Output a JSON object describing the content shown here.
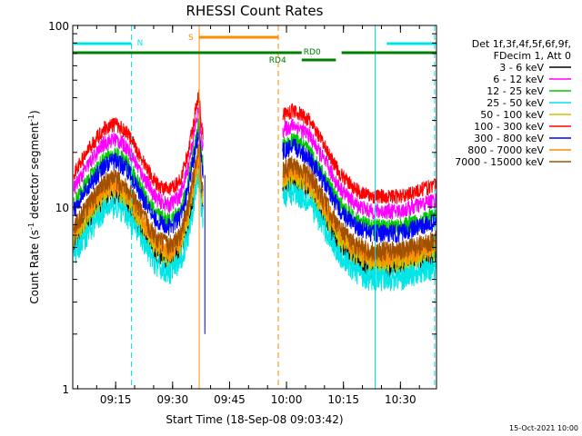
{
  "chart_data": {
    "type": "line",
    "title": "RHESSI Count Rates",
    "xlabel": "Start Time (18-Sep-08 09:03:42)",
    "ylabel_main": "Count Rate (s",
    "ylabel_sup1": "-1",
    "ylabel_mid": " detector segment",
    "ylabel_sup2": "-1",
    "ylabel_end": ")",
    "x_start": "09:03:42",
    "x_end": "10:39:30",
    "y_scale": "log",
    "ylim": [
      1,
      100
    ],
    "x_ticks": [
      "09:15",
      "09:30",
      "09:45",
      "10:00",
      "10:15",
      "10:30"
    ],
    "y_ticks": [
      "1",
      "10",
      "100"
    ],
    "legend_header": [
      "Det 1f,3f,4f,5f,6f,9f,",
      "FDecim 1, Att 0"
    ],
    "legend_position": "right",
    "series": [
      {
        "name": "3 - 6 keV",
        "color": "#000000",
        "scale": 0.58
      },
      {
        "name": "6 - 12 keV",
        "color": "#ff00ff",
        "scale": 1.16
      },
      {
        "name": "12 - 25 keV",
        "color": "#00c800",
        "scale": 0.95
      },
      {
        "name": "25 - 50 keV",
        "color": "#00e6e6",
        "scale": 0.5
      },
      {
        "name": "50 - 100 keV",
        "color": "#c8c800",
        "scale": 0.62
      },
      {
        "name": "100 - 300 keV",
        "color": "#ff0000",
        "scale": 1.4
      },
      {
        "name": "300 - 800 keV",
        "color": "#0000ff",
        "scale": 0.88
      },
      {
        "name": "800 - 7000 keV",
        "color": "#ff8c00",
        "scale": 0.66
      },
      {
        "name": "7000 - 15000 keV",
        "color": "#a05000",
        "scale": 0.7
      }
    ],
    "base_profile": [
      {
        "t": "09:04:00",
        "v": 11.0
      },
      {
        "t": "09:08:00",
        "v": 15.0
      },
      {
        "t": "09:12:00",
        "v": 19.5
      },
      {
        "t": "09:15:00",
        "v": 20.5
      },
      {
        "t": "09:18:00",
        "v": 18.5
      },
      {
        "t": "09:22:00",
        "v": 13.0
      },
      {
        "t": "09:26:00",
        "v": 9.5
      },
      {
        "t": "09:29:00",
        "v": 8.8
      },
      {
        "t": "09:32:00",
        "v": 10.0
      },
      {
        "t": "09:34:00",
        "v": 14.0
      },
      {
        "t": "09:36:00",
        "v": 24.0
      },
      {
        "t": "09:37:00",
        "v": 31.0
      },
      {
        "t": "09:37:30",
        "v": 21.0
      },
      {
        "t": "09:38:00",
        "v": 18.0
      }
    ],
    "base_profile_2": [
      {
        "t": "09:59:00",
        "v": 23.0
      },
      {
        "t": "10:02:00",
        "v": 24.5
      },
      {
        "t": "10:06:00",
        "v": 21.5
      },
      {
        "t": "10:10:00",
        "v": 15.5
      },
      {
        "t": "10:14:00",
        "v": 11.0
      },
      {
        "t": "10:18:00",
        "v": 9.0
      },
      {
        "t": "10:22:00",
        "v": 8.2
      },
      {
        "t": "10:30:00",
        "v": 8.2
      },
      {
        "t": "10:36:00",
        "v": 9.0
      },
      {
        "t": "10:39:30",
        "v": 9.5
      }
    ],
    "annotations": {
      "night_intervals": [
        [
          "09:03:42",
          "09:19:10"
        ],
        [
          "10:26:10",
          "10:39:30"
        ]
      ],
      "night_label": "N",
      "saa_interval": [
        "09:37:00",
        "09:57:50"
      ],
      "saa_label": "S",
      "decim_segments": [
        [
          "09:03:42",
          "10:13:00"
        ],
        [
          "10:14:30",
          "10:39:30"
        ]
      ],
      "decim_step": [
        "10:04:00",
        "10:13:00"
      ],
      "decim_labels": [
        "RD0",
        "RD4"
      ],
      "cyan_vlines": [
        "09:19:10",
        "10:23:20",
        "10:39:00"
      ],
      "orange_vlines": [
        "09:37:00",
        "09:57:50"
      ]
    },
    "timestamp": "15-Oct-2021 10:00"
  }
}
